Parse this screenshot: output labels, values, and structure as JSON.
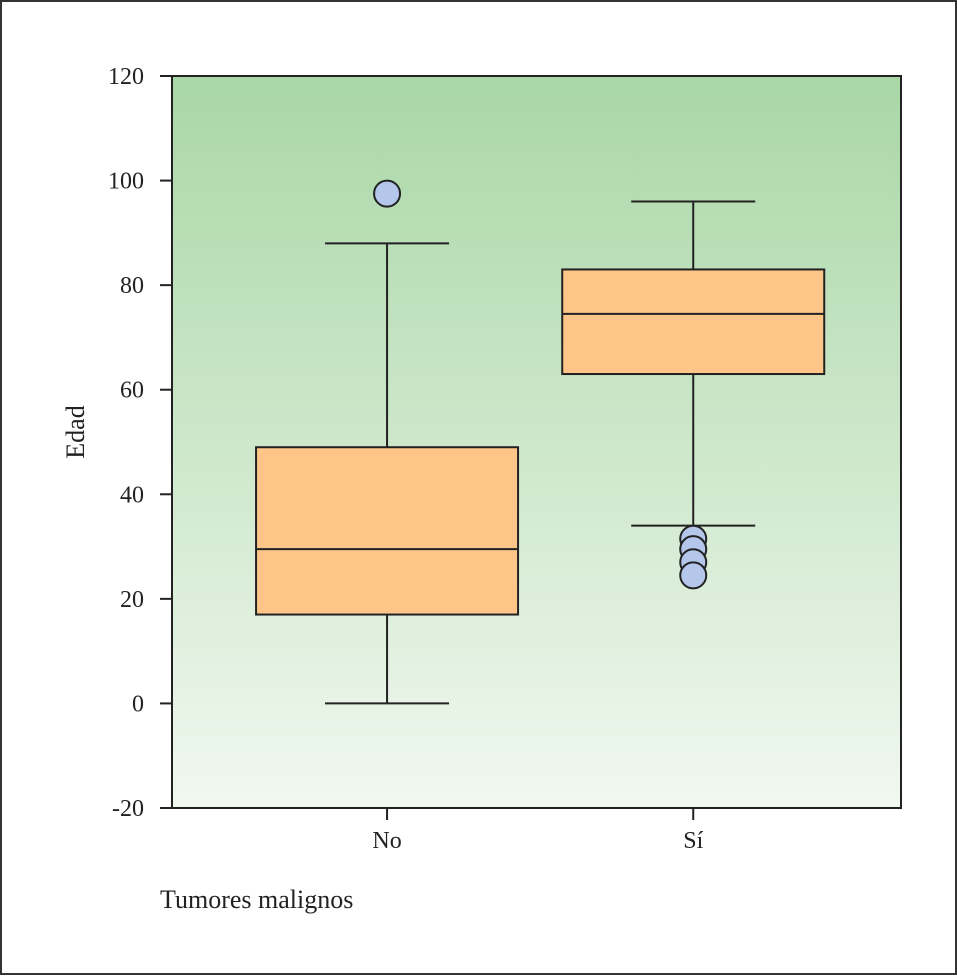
{
  "chart_data": {
    "type": "boxplot",
    "xlabel": "Tumores malignos",
    "ylabel": "Edad",
    "ylim": [
      -20,
      120
    ],
    "yticks": [
      -20,
      0,
      20,
      40,
      60,
      80,
      100,
      120
    ],
    "categories": [
      "No",
      "Sí"
    ],
    "boxes": [
      {
        "category": "No",
        "whisker_low": 0,
        "q1": 17,
        "median": 29.5,
        "q3": 49,
        "whisker_high": 88,
        "outliers": [
          97.5
        ]
      },
      {
        "category": "Sí",
        "whisker_low": 34,
        "q1": 63,
        "median": 74.5,
        "q3": 83,
        "whisker_high": 96,
        "outliers": [
          31.5,
          29.5,
          27,
          24.5
        ]
      }
    ],
    "grid": false,
    "colors": {
      "box_fill": "#fec589",
      "outlier_fill": "#b4c6ea",
      "background_top": "#a9d7a6",
      "background_bottom": "#f1f8f0",
      "line": "#222222"
    }
  }
}
